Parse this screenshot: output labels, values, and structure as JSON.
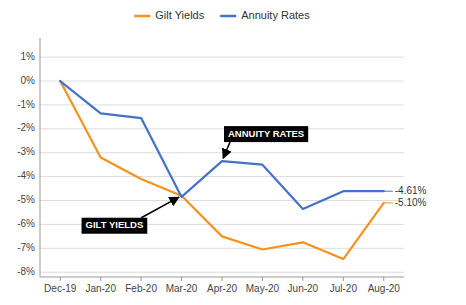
{
  "chart_data": {
    "type": "line",
    "categories": [
      "Dec-19",
      "Jan-20",
      "Feb-20",
      "Mar-20",
      "Apr-20",
      "May-20",
      "Jun-20",
      "Jul-20",
      "Aug-20"
    ],
    "series": [
      {
        "name": "Gilt Yields",
        "color": "#F4921E",
        "values": [
          0.0,
          -3.2,
          -4.1,
          -4.8,
          -6.5,
          -7.05,
          -6.75,
          -7.45,
          -5.1
        ],
        "value_labels": [
          null,
          null,
          null,
          null,
          null,
          null,
          null,
          null,
          "-5.10%"
        ]
      },
      {
        "name": "Annuity Rates",
        "color": "#4472C4",
        "values": [
          0.0,
          -1.35,
          -1.55,
          -4.85,
          -3.35,
          -3.5,
          -5.35,
          -4.61,
          -4.61
        ],
        "value_labels": [
          null,
          null,
          null,
          null,
          null,
          null,
          null,
          null,
          "-4.61%"
        ]
      }
    ],
    "ylim": [
      -8.2,
      1.8
    ],
    "yticks": [
      {
        "value": 1,
        "label": "1%"
      },
      {
        "value": 0,
        "label": "0%"
      },
      {
        "value": -1,
        "label": "-1%"
      },
      {
        "value": -2,
        "label": "-2%"
      },
      {
        "value": -3,
        "label": "-3%"
      },
      {
        "value": -4,
        "label": "-4%"
      },
      {
        "value": -5,
        "label": "-5%"
      },
      {
        "value": -6,
        "label": "-6%"
      },
      {
        "value": -7,
        "label": "-7%"
      },
      {
        "value": -8,
        "label": "-8%"
      }
    ],
    "annotations": [
      {
        "text": "GILT YIELDS"
      },
      {
        "text": "ANNUITY RATES"
      }
    ],
    "grid": true,
    "legend": "top"
  }
}
